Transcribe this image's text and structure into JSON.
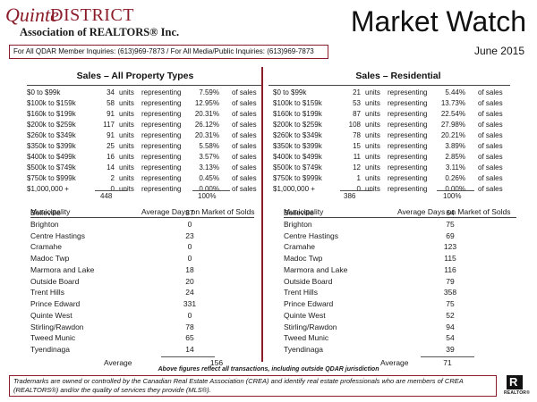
{
  "header": {
    "logo_quinte": "Quinte",
    "logo_district": "DISTRICT",
    "logo_association": "Association of REALTORS® Inc.",
    "title": "Market Watch",
    "date": "June 2015",
    "inquiries": "For All QDAR Member Inquiries: (613)969-7873 / For All Media/Public Inquiries: (613)969-7873"
  },
  "labels": {
    "units": "units",
    "representing": "representing",
    "of_sales": "of sales",
    "municipality": "Municipality",
    "avg_days": "Average Days on Market of Solds",
    "average": "Average"
  },
  "sales_all": {
    "title": "Sales – All Property Types",
    "rows": [
      {
        "range": "$0 to $99k",
        "units": "34",
        "pct": "7.59%"
      },
      {
        "range": "$100k to $159k",
        "units": "58",
        "pct": "12.95%"
      },
      {
        "range": "$160k to $199k",
        "units": "91",
        "pct": "20.31%"
      },
      {
        "range": "$200k to $259k",
        "units": "117",
        "pct": "26.12%"
      },
      {
        "range": "$260k to $349k",
        "units": "91",
        "pct": "20.31%"
      },
      {
        "range": "$350k to $399k",
        "units": "25",
        "pct": "5.58%"
      },
      {
        "range": "$400k to $499k",
        "units": "16",
        "pct": "3.57%"
      },
      {
        "range": "$500k to $749k",
        "units": "14",
        "pct": "3.13%"
      },
      {
        "range": "$750k to $999k",
        "units": "2",
        "pct": "0.45%"
      },
      {
        "range": "$1,000,000 +",
        "units": "0",
        "pct": "0.00%"
      }
    ],
    "total_units": "448",
    "total_pct": "100%"
  },
  "sales_res": {
    "title": "Sales – Residential",
    "rows": [
      {
        "range": "$0 to $99k",
        "units": "21",
        "pct": "5.44%"
      },
      {
        "range": "$100k to $159k",
        "units": "53",
        "pct": "13.73%"
      },
      {
        "range": "$160k to $199k",
        "units": "87",
        "pct": "22.54%"
      },
      {
        "range": "$200k to $259k",
        "units": "108",
        "pct": "27.98%"
      },
      {
        "range": "$260k to $349k",
        "units": "78",
        "pct": "20.21%"
      },
      {
        "range": "$350k to $399k",
        "units": "15",
        "pct": "3.89%"
      },
      {
        "range": "$400k to $499k",
        "units": "11",
        "pct": "2.85%"
      },
      {
        "range": "$500k to $749k",
        "units": "12",
        "pct": "3.11%"
      },
      {
        "range": "$750k to $999k",
        "units": "1",
        "pct": "0.26%"
      },
      {
        "range": "$1,000,000 +",
        "units": "0",
        "pct": "0.00%"
      }
    ],
    "total_units": "386",
    "total_pct": "100%"
  },
  "dom_all": {
    "rows": [
      {
        "name": "Belleville",
        "days": "87"
      },
      {
        "name": "Brighton",
        "days": "0"
      },
      {
        "name": "Centre Hastings",
        "days": "23"
      },
      {
        "name": "Cramahe",
        "days": "0"
      },
      {
        "name": "Madoc Twp",
        "days": "0"
      },
      {
        "name": "Marmora and Lake",
        "days": "18"
      },
      {
        "name": "Outside Board",
        "days": "20"
      },
      {
        "name": "Trent Hills",
        "days": "24"
      },
      {
        "name": "Prince Edward",
        "days": "331"
      },
      {
        "name": "Quinte West",
        "days": "0"
      },
      {
        "name": "Stirling/Rawdon",
        "days": "78"
      },
      {
        "name": "Tweed Munic",
        "days": "65"
      },
      {
        "name": "Tyendinaga",
        "days": "14"
      }
    ],
    "average": "156"
  },
  "dom_res": {
    "rows": [
      {
        "name": "Belleville",
        "days": "64"
      },
      {
        "name": "Brighton",
        "days": "75"
      },
      {
        "name": "Centre Hastings",
        "days": "69"
      },
      {
        "name": "Cramahe",
        "days": "123"
      },
      {
        "name": "Madoc Twp",
        "days": "115"
      },
      {
        "name": "Marmora and Lake",
        "days": "116"
      },
      {
        "name": "Outside Board",
        "days": "79"
      },
      {
        "name": "Trent Hills",
        "days": "358"
      },
      {
        "name": "Prince Edward",
        "days": "75"
      },
      {
        "name": "Quinte West",
        "days": "52"
      },
      {
        "name": "Stirling/Rawdon",
        "days": "94"
      },
      {
        "name": "Tweed Munic",
        "days": "54"
      },
      {
        "name": "Tyendinaga",
        "days": "39"
      }
    ],
    "average": "71"
  },
  "note": "Above figures reflect all transactions, including outside QDAR jurisdiction",
  "footer": "Trademarks are owned or controlled by the Canadian Real Estate Association (CREA) and identify real estate professionals who are members of CREA (REALTORS®) and/or the quality of services they provide (MLS®).",
  "realtor_logo": {
    "letter": "R",
    "word": "REALTOR®"
  },
  "colors": {
    "accent": "#8b1d2a"
  }
}
